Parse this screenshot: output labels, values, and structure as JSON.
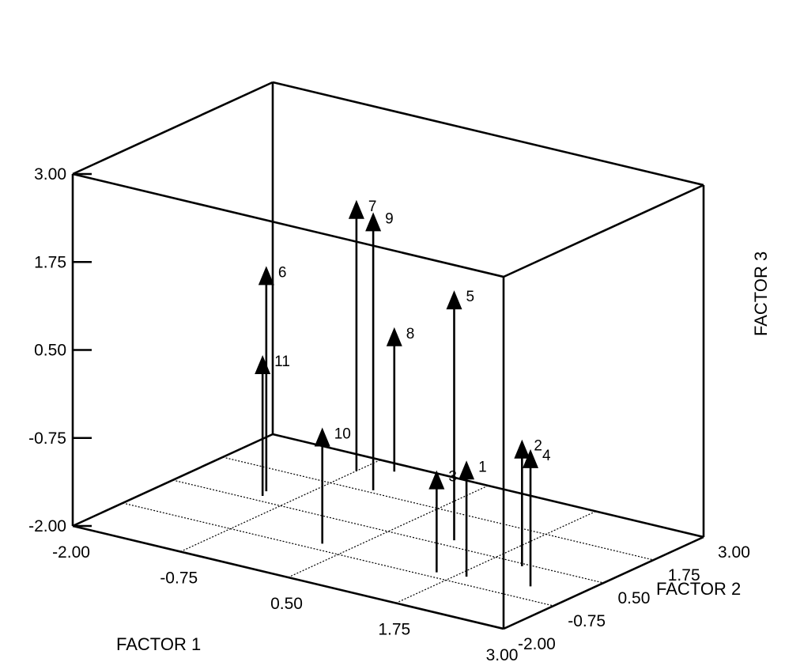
{
  "chart_data": {
    "type": "scatter",
    "subtype": "3d-needle",
    "title": "",
    "axes": {
      "x": {
        "label": "FACTOR 1",
        "range": [
          -2.0,
          3.0
        ],
        "ticks": [
          "-2.00",
          "-0.75",
          "0.50",
          "1.75",
          "3.00"
        ]
      },
      "y": {
        "label": "FACTOR 2",
        "range": [
          -2.0,
          3.0
        ],
        "ticks": [
          "-2.00",
          "-0.75",
          "0.50",
          "1.75",
          "3.00"
        ]
      },
      "z": {
        "label": "FACTOR 3",
        "range": [
          -2.0,
          3.0
        ],
        "ticks": [
          "-2.00",
          "-0.75",
          "0.50",
          "1.75",
          "3.00"
        ]
      }
    },
    "grid": true,
    "points": [
      {
        "label": "1",
        "x": 1.85,
        "y": -0.45,
        "z": -0.35
      },
      {
        "label": "2",
        "x": 2.1,
        "y": 0.4,
        "z": -0.2
      },
      {
        "label": "3",
        "x": 1.55,
        "y": -0.55,
        "z": -0.55
      },
      {
        "label": "4",
        "x": 2.5,
        "y": -0.25,
        "z": -0.05
      },
      {
        "label": "5",
        "x": 1.15,
        "y": 0.75,
        "z": 1.55
      },
      {
        "label": "6",
        "x": -1.1,
        "y": 0.9,
        "z": 1.2
      },
      {
        "label": "7",
        "x": -0.75,
        "y": 2.4,
        "z": 1.85
      },
      {
        "label": "8",
        "x": -0.45,
        "y": 2.7,
        "z": 0.05
      },
      {
        "label": "9",
        "x": -0.3,
        "y": 1.85,
        "z": 1.95
      },
      {
        "label": "10",
        "x": 0.2,
        "y": -0.5,
        "z": -0.35
      },
      {
        "label": "11",
        "x": -1.05,
        "y": 0.7,
        "z": 0.0
      }
    ]
  }
}
